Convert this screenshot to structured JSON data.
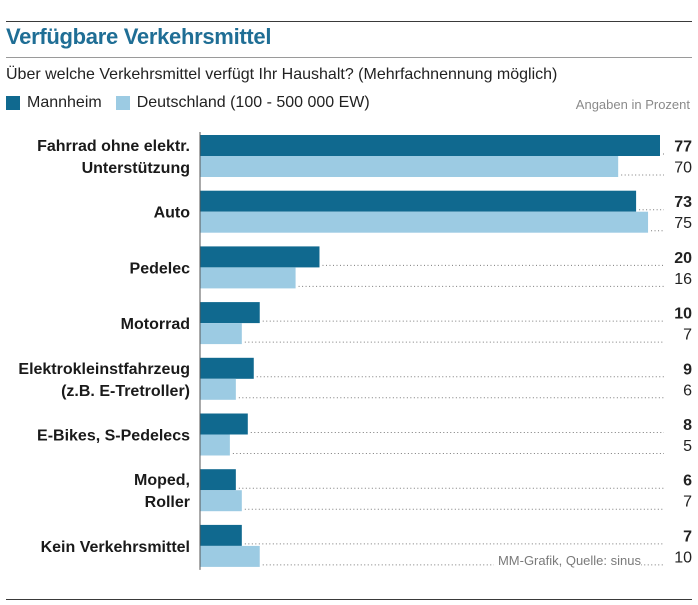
{
  "header": {
    "title": "Verfügbare Verkehrsmittel",
    "subtitle": "Über welche Verkehrsmittel verfügt Ihr Haushalt? (Mehrfachnennung möglich)",
    "unit_note": "Angaben in Prozent",
    "source": "MM-Grafik, Quelle: sinus"
  },
  "colors": {
    "mannheim": "#10698f",
    "deutschland": "#9ccbe3",
    "title": "#1f6e95"
  },
  "chart_data": {
    "type": "bar",
    "orientation": "horizontal",
    "title": "Verfügbare Verkehrsmittel",
    "subtitle": "Über welche Verkehrsmittel verfügt Ihr Haushalt? (Mehrfachnennung möglich)",
    "unit": "Angaben in Prozent",
    "xlim": [
      0,
      77
    ],
    "grid": false,
    "legend": "top-left",
    "categories": [
      [
        "Fahrrad ohne elektr.",
        "Unterstützung"
      ],
      [
        "Auto"
      ],
      [
        "Pedelec"
      ],
      [
        "Motorrad"
      ],
      [
        "Elektrokleinstfahrzeug",
        "(z.B. E-Tretroller)"
      ],
      [
        "E-Bikes, S-Pedelecs"
      ],
      [
        "Moped,",
        "Roller"
      ],
      [
        "Kein Verkehrsmittel"
      ]
    ],
    "series": [
      {
        "name": "Mannheim",
        "values": [
          77,
          73,
          20,
          10,
          9,
          8,
          6,
          7
        ]
      },
      {
        "name": "Deutschland (100 - 500 000 EW)",
        "values": [
          70,
          75,
          16,
          7,
          6,
          5,
          7,
          10
        ]
      }
    ]
  }
}
